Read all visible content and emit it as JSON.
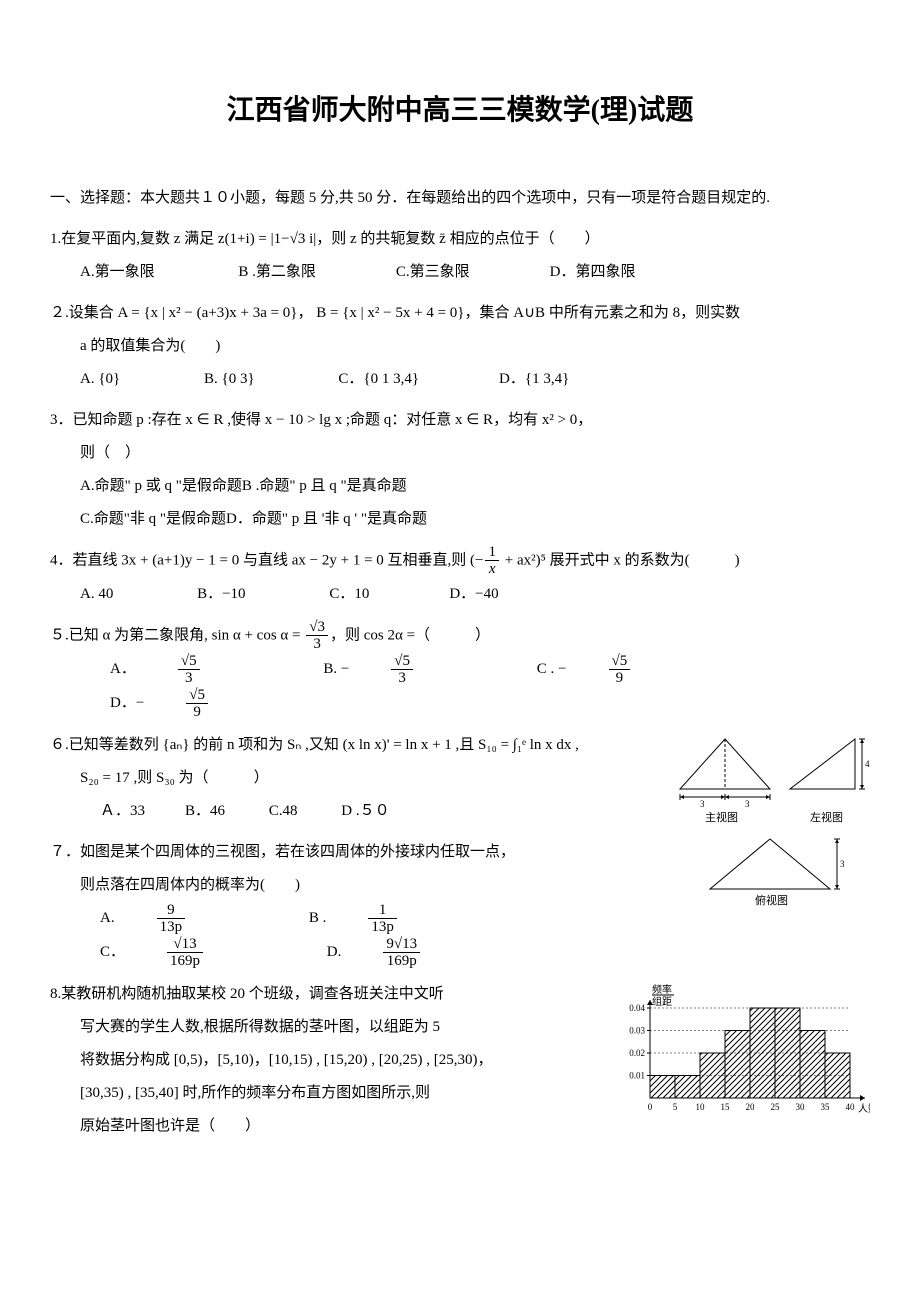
{
  "title": "江西省师大附中高三三模数学(理)试题",
  "section": "一、选择题：本大题共１０小题，每题 5 分,共 50 分．在每题给出的四个选项中，只有一项是符合题目规定的.",
  "q1": {
    "text": "1.在复平面内,复数 z 满足 z(1+i) = |1−√3 i|，则 z 的共轭复数 z̄ 相应的点位于（　　）",
    "A": "A.第一象限",
    "B": "B .第二象限",
    "C": "C.第三象限",
    "D": "D．第四象限"
  },
  "q2": {
    "text1": "２.设集合 A = {x | x² − (a+3)x + 3a = 0}， B = {x | x² − 5x + 4 = 0}，集合 A∪B 中所有元素之和为 8，则实数",
    "text2": "a 的取值集合为(　　)",
    "A": "A. {0}",
    "B": "B. {0  3}",
    "C": "C．{0 1 3,4}",
    "D": "D．{1 3,4}"
  },
  "q3": {
    "text1": "3．已知命题 p :存在 x ∈ R ,使得 x − 10 > lg x ;命题 q：对任意 x ∈ R，均有 x² > 0，",
    "text2": "则（　）",
    "A": "A.命题\" p 或 q \"是假命题",
    "B": "B .命题\" p 且 q \"是真命题",
    "C": "C.命题\"非 q \"是假命题",
    "D": "D．命题\" p 且 '非 q ' \"是真命题"
  },
  "q4": {
    "text_pre": "4．若直线 3x + (a+1)y − 1 = 0 与直线 ax − 2y + 1 = 0 互相垂直,则 (−",
    "text_post": " + ax²)⁵ 展开式中 x 的系数为(　　　)",
    "A": "A. 40",
    "B": "B．−10",
    "C": "C．10",
    "D": "D．−40"
  },
  "q5": {
    "text_pre": "５.已知 α 为第二象限角, sin α + cos α = ",
    "text_post": "，则 cos 2α =（　　　）",
    "labelA": "A．",
    "labelB": "B. −",
    "labelC": "C . −",
    "labelD": "D．−",
    "num": "√5",
    "denA": "3",
    "denB": "3",
    "denC": "9",
    "denD": "9",
    "sqrt3": "√3",
    "den3": "3"
  },
  "q6": {
    "text_pre": "６.已知等差数列 {aₙ} 的前 n 项和为 Sₙ ,又知 (x ln x)' = ln x + 1 ,且 S₁₀ = ∫₁ᵉ ln x dx ,",
    "text2": "S₂₀ = 17 ,则 S₃₀ 为（　　　）",
    "A": "Ａ．33",
    "B": "B．46",
    "C": "C.48",
    "D": "D .５０"
  },
  "q7": {
    "text1": "７．如图是某个四周体的三视图，若在该四周体的外接球内任取一点，",
    "text2": "则点落在四周体内的概率为(　　)",
    "labelA": "A. ",
    "labelB": "B . ",
    "labelC": "C．",
    "labelD": "D. ",
    "numA": "9",
    "numB": "1",
    "numC": "√13",
    "numD": "9√13",
    "denA": "13p",
    "denB": "13p",
    "denC": "169p",
    "denD": "169p"
  },
  "q8": {
    "text1": "8.某教研机构随机抽取某校 20 个班级，调查各班关注中文听",
    "text2": "写大赛的学生人数,根据所得数据的茎叶图，以组距为 5",
    "text3": "将数据分构成 [0,5)，[5,10)，[10,15) , [15,20) , [20,25) , [25,30)，",
    "text4": "[30,35) , [35,40] 时,所作的频率分布直方图如图所示,则",
    "text5": "原始茎叶图也许是（　　）"
  },
  "diagram_views": {
    "main_view": "主视图",
    "side_view": "左视图",
    "top_view": "俯视图",
    "dim3": "3",
    "dim4": "4"
  },
  "histogram": {
    "ylabel1": "频率",
    "ylabel2": "组距",
    "xlabel": "人数",
    "yticks": [
      "0.01",
      "0.02",
      "0.03",
      "0.04"
    ],
    "xticks": [
      "0",
      "5",
      "10",
      "15",
      "20",
      "25",
      "30",
      "35",
      "40"
    ],
    "bars": [
      0.01,
      0.01,
      0.02,
      0.03,
      0.04,
      0.04,
      0.03,
      0.02
    ],
    "bar_color": "#888",
    "axis_color": "#000",
    "hatch_pattern": "diagonal"
  }
}
